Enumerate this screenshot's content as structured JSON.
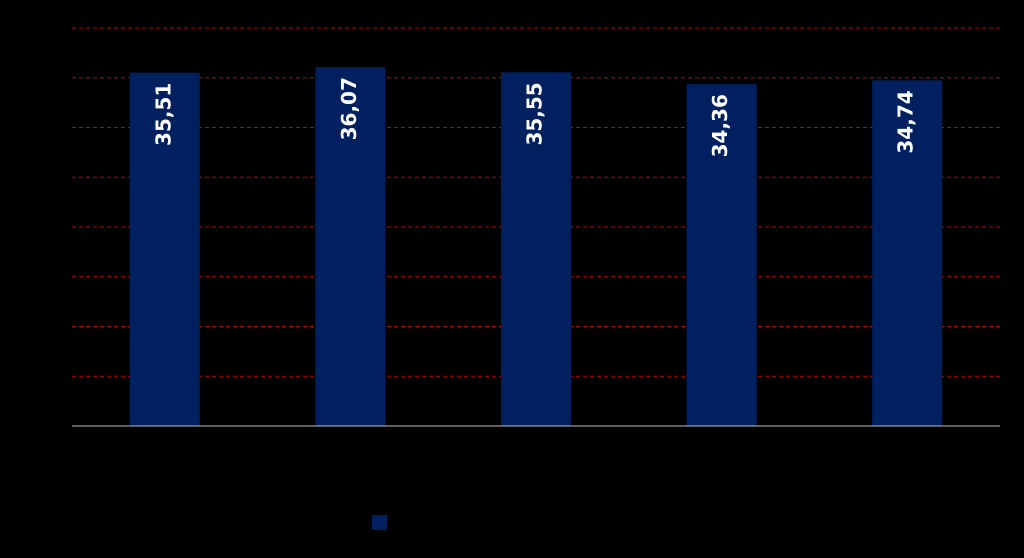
{
  "chart_data": {
    "type": "bar",
    "categories": [
      null,
      null,
      null,
      null,
      null
    ],
    "values": [
      35.51,
      36.07,
      35.55,
      34.36,
      34.74
    ],
    "value_labels": [
      "35,51",
      "36,07",
      "35,55",
      "34,36",
      "34,74"
    ],
    "color": "#002060",
    "ylim": [
      0,
      40
    ],
    "yticks": [
      0,
      5,
      10,
      15,
      20,
      25,
      30,
      35,
      40
    ],
    "grid": true
  }
}
